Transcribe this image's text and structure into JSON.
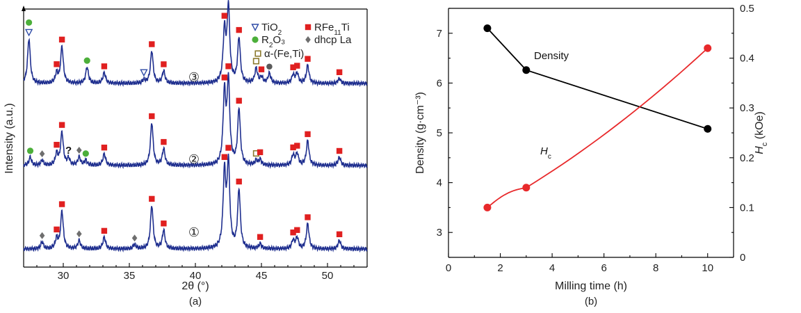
{
  "chart_data": [
    {
      "type": "line",
      "panel": "(a)",
      "xlabel": "2θ (°)",
      "ylabel": "Intensity (a.u.)",
      "xlim": [
        27,
        53
      ],
      "xticks": [
        "30",
        "35",
        "40",
        "45",
        "50"
      ],
      "legend": [
        {
          "marker": "open-triangle",
          "text": "TiO₂",
          "color": "#2d4aa6"
        },
        {
          "marker": "square",
          "text": "RFe₁₁Ti",
          "color": "#e02020"
        },
        {
          "marker": "circle",
          "text": "R₂O₃",
          "color": "#4caf3a"
        },
        {
          "marker": "diamond",
          "text": "dhcp La",
          "color": "#6e6e6e"
        },
        {
          "marker": "open-square",
          "text": "α-(Fe,Ti)",
          "color": "#8c7a2e"
        }
      ],
      "series": [
        {
          "name": "①",
          "line_color": "#1f2f8f",
          "peaks": [
            [
              28.4,
              0.08
            ],
            [
              29.5,
              0.12
            ],
            [
              29.9,
              0.45
            ],
            [
              31.2,
              0.1
            ],
            [
              33.1,
              0.14
            ],
            [
              35.4,
              0.05
            ],
            [
              36.7,
              0.52
            ],
            [
              37.6,
              0.22
            ],
            [
              42.2,
              0.88
            ],
            [
              42.5,
              1.0
            ],
            [
              43.3,
              0.7
            ],
            [
              44.9,
              0.06
            ],
            [
              47.4,
              0.1
            ],
            [
              47.7,
              0.13
            ],
            [
              48.5,
              0.3
            ],
            [
              50.9,
              0.1
            ]
          ],
          "markers": [
            {
              "x": 28.4,
              "type": "diamond"
            },
            {
              "x": 29.5,
              "type": "square"
            },
            {
              "x": 29.9,
              "type": "square"
            },
            {
              "x": 31.2,
              "type": "diamond"
            },
            {
              "x": 33.1,
              "type": "square"
            },
            {
              "x": 35.4,
              "type": "diamond"
            },
            {
              "x": 36.7,
              "type": "square"
            },
            {
              "x": 37.6,
              "type": "square"
            },
            {
              "x": 42.2,
              "type": "square"
            },
            {
              "x": 42.5,
              "type": "square"
            },
            {
              "x": 43.3,
              "type": "square"
            },
            {
              "x": 44.9,
              "type": "square"
            },
            {
              "x": 47.4,
              "type": "square"
            },
            {
              "x": 47.7,
              "type": "square"
            },
            {
              "x": 48.5,
              "type": "square"
            },
            {
              "x": 50.9,
              "type": "square"
            }
          ]
        },
        {
          "name": "②",
          "line_color": "#1f2f8f",
          "peaks": [
            [
              27.5,
              0.1
            ],
            [
              28.4,
              0.06
            ],
            [
              29.5,
              0.14
            ],
            [
              29.9,
              0.4
            ],
            [
              30.4,
              0.08
            ],
            [
              31.2,
              0.1
            ],
            [
              31.7,
              0.06
            ],
            [
              33.1,
              0.14
            ],
            [
              36.7,
              0.52
            ],
            [
              37.6,
              0.2
            ],
            [
              42.2,
              0.85
            ],
            [
              42.5,
              1.0
            ],
            [
              43.3,
              0.68
            ],
            [
              44.6,
              0.05
            ],
            [
              44.9,
              0.07
            ],
            [
              47.4,
              0.12
            ],
            [
              47.7,
              0.14
            ],
            [
              48.5,
              0.3
            ],
            [
              50.9,
              0.1
            ]
          ],
          "markers": [
            {
              "x": 27.5,
              "type": "circle"
            },
            {
              "x": 28.4,
              "type": "diamond"
            },
            {
              "x": 29.5,
              "type": "square"
            },
            {
              "x": 29.9,
              "type": "square"
            },
            {
              "x": 30.4,
              "type": "question"
            },
            {
              "x": 31.2,
              "type": "diamond"
            },
            {
              "x": 31.7,
              "type": "circle"
            },
            {
              "x": 33.1,
              "type": "square"
            },
            {
              "x": 36.7,
              "type": "square"
            },
            {
              "x": 37.6,
              "type": "square"
            },
            {
              "x": 42.2,
              "type": "square"
            },
            {
              "x": 42.5,
              "type": "square"
            },
            {
              "x": 43.3,
              "type": "square"
            },
            {
              "x": 44.6,
              "type": "open-square"
            },
            {
              "x": 44.9,
              "type": "square"
            },
            {
              "x": 47.4,
              "type": "square"
            },
            {
              "x": 47.7,
              "type": "square"
            },
            {
              "x": 48.5,
              "type": "square"
            },
            {
              "x": 50.9,
              "type": "square"
            }
          ]
        },
        {
          "name": "③",
          "line_color": "#1f2f8f",
          "peaks": [
            [
              27.4,
              0.55
            ],
            [
              29.5,
              0.12
            ],
            [
              29.9,
              0.45
            ],
            [
              31.8,
              0.2
            ],
            [
              33.1,
              0.13
            ],
            [
              36.1,
              0.04
            ],
            [
              36.7,
              0.4
            ],
            [
              37.6,
              0.15
            ],
            [
              42.2,
              0.62
            ],
            [
              42.5,
              0.92
            ],
            [
              43.3,
              0.55
            ],
            [
              44.6,
              0.18
            ],
            [
              45.0,
              0.07
            ],
            [
              45.6,
              0.12
            ],
            [
              47.4,
              0.1
            ],
            [
              47.7,
              0.12
            ],
            [
              48.5,
              0.22
            ],
            [
              50.9,
              0.06
            ]
          ],
          "markers": [
            {
              "x": 27.4,
              "type": "triangle"
            },
            {
              "x": 27.4,
              "type": "circle"
            },
            {
              "x": 29.5,
              "type": "square"
            },
            {
              "x": 29.9,
              "type": "square"
            },
            {
              "x": 31.8,
              "type": "circle"
            },
            {
              "x": 33.1,
              "type": "square"
            },
            {
              "x": 36.1,
              "type": "triangle"
            },
            {
              "x": 36.7,
              "type": "square"
            },
            {
              "x": 37.6,
              "type": "square"
            },
            {
              "x": 42.2,
              "type": "square"
            },
            {
              "x": 42.5,
              "type": "square"
            },
            {
              "x": 43.3,
              "type": "square"
            },
            {
              "x": 44.6,
              "type": "open-square"
            },
            {
              "x": 45.0,
              "type": "square"
            },
            {
              "x": 45.6,
              "type": "dark-circle"
            },
            {
              "x": 47.4,
              "type": "square"
            },
            {
              "x": 47.7,
              "type": "square"
            },
            {
              "x": 48.5,
              "type": "square"
            },
            {
              "x": 50.9,
              "type": "square"
            }
          ]
        }
      ],
      "question_mark": "?"
    },
    {
      "type": "line",
      "panel": "(b)",
      "xlabel": "Milling time (h)",
      "ylabel_left": "Density (g·cm⁻³)",
      "ylabel_right_main": "H",
      "ylabel_right_sub": "c",
      "ylabel_right_unit": " (kOe)",
      "xlim": [
        0,
        11
      ],
      "ylim_left": [
        2.5,
        7.5
      ],
      "ylim_right": [
        0,
        0.5
      ],
      "xticks": [
        "0",
        "2",
        "4",
        "6",
        "8",
        "10"
      ],
      "yticks_left": [
        "3",
        "4",
        "5",
        "6",
        "7"
      ],
      "yticks_right": [
        "0",
        "0.1",
        "0.2",
        "0.3",
        "0.4",
        "0.5"
      ],
      "series": [
        {
          "name": "Density",
          "color": "#000000",
          "axis": "left",
          "x": [
            1.5,
            3,
            10
          ],
          "y": [
            7.1,
            6.26,
            5.08
          ]
        },
        {
          "name": "Hc",
          "label_main": "H",
          "label_sub": "c",
          "color": "#e8292b",
          "axis": "right",
          "x": [
            1.5,
            3,
            10
          ],
          "y": [
            0.1,
            0.14,
            0.42
          ]
        }
      ]
    }
  ]
}
